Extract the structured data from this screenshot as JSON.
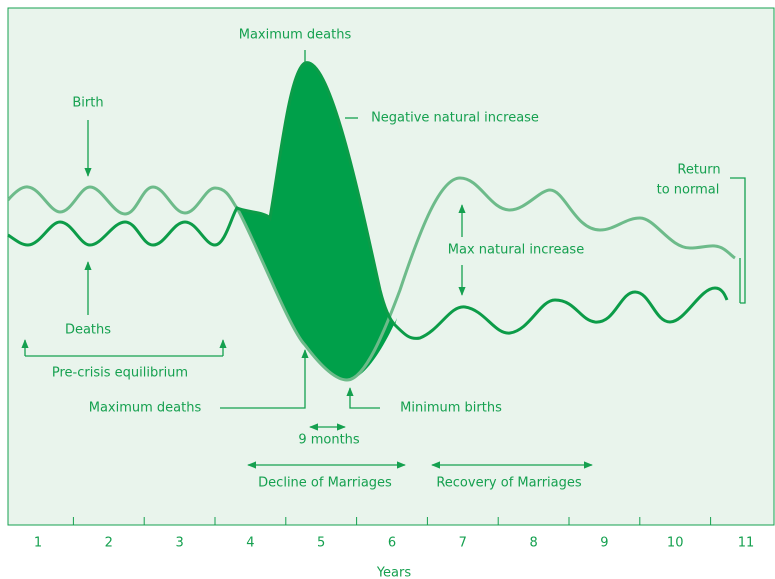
{
  "annotations": {
    "max_deaths_top": "Maximum deaths",
    "negative_increase": "Negative natural increase",
    "birth": "Birth",
    "deaths": "Deaths",
    "pre_crisis": "Pre-crisis equilibrium",
    "max_deaths_bottom": "Maximum deaths",
    "min_births": "Minimum births",
    "nine_months": "9 months",
    "decline_marriages": "Decline of Marriages",
    "recovery_marriages": "Recovery of Marriages",
    "max_natural_increase": "Max natural increase",
    "return_normal": [
      "Return",
      "to normal"
    ]
  },
  "axis": {
    "ticks": [
      "1",
      "2",
      "3",
      "4",
      "5",
      "6",
      "7",
      "8",
      "9",
      "10",
      "11"
    ],
    "label": "Years"
  }
}
